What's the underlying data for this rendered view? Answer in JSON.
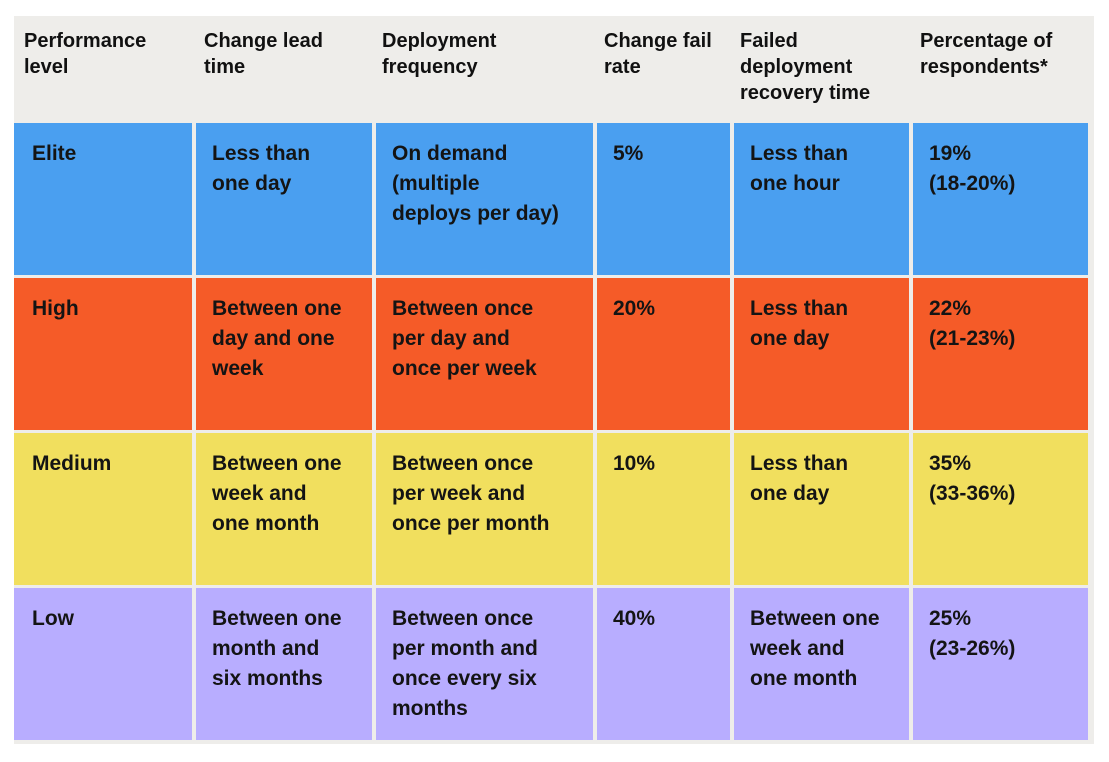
{
  "chart_data": {
    "type": "table",
    "columns": [
      "Performance\nlevel",
      "Change lead\ntime",
      "Deployment\nfrequency",
      "Change fail\nrate",
      "Failed\ndeployment\nrecovery time",
      "Percentage of\nrespondents*"
    ],
    "rows": [
      {
        "level": "Elite",
        "color": "#4a9ff0",
        "cells": [
          "Elite",
          "Less than\none day",
          "On demand\n(multiple\ndeploys per day)",
          "5%",
          "Less than\none hour",
          "19%\n(18-20%)"
        ]
      },
      {
        "level": "High",
        "color": "#f55b28",
        "cells": [
          "High",
          "Between one\nday and one\nweek",
          "Between once\nper day and\nonce per week",
          "20%",
          "Less than\none day",
          "22%\n(21-23%)"
        ]
      },
      {
        "level": "Medium",
        "color": "#f1df5e",
        "cells": [
          "Medium",
          "Between one\nweek and\none month",
          "Between once\nper week and\nonce per month",
          "10%",
          "Less than\none day",
          "35%\n(33-36%)"
        ]
      },
      {
        "level": "Low",
        "color": "#b8adff",
        "cells": [
          "Low",
          "Between one\nmonth and\nsix months",
          "Between once\nper month and\nonce every six\nmonths",
          "40%",
          "Between one\nweek and\none month",
          "25%\n(23-26%)"
        ]
      }
    ],
    "header_background": "#eeedea",
    "change_fail_rate_values": [
      5,
      20,
      10,
      40
    ],
    "respondents_percent": [
      19,
      22,
      35,
      25
    ],
    "respondents_ci": [
      [
        18,
        20
      ],
      [
        21,
        23
      ],
      [
        33,
        36
      ],
      [
        23,
        26
      ]
    ]
  }
}
